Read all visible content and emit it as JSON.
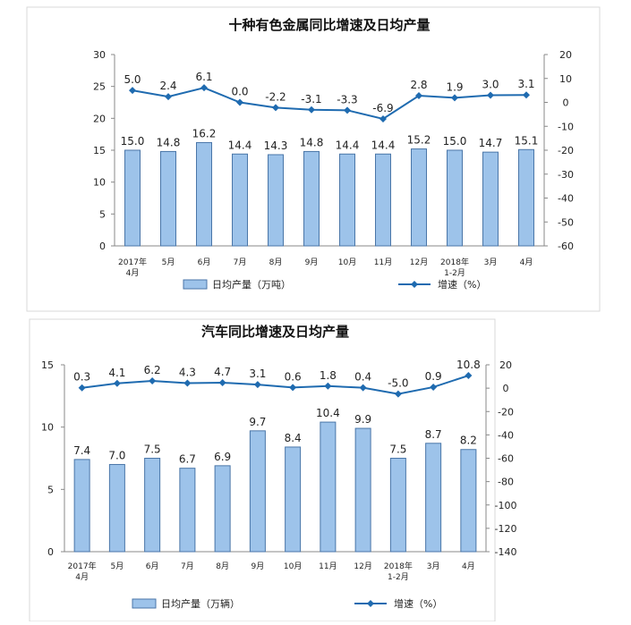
{
  "chart_data": [
    {
      "type": "bar",
      "title": "十种有色金属同比增速及日均产量",
      "categories": [
        "2017年\n4月",
        "5月",
        "6月",
        "7月",
        "8月",
        "9月",
        "10月",
        "11月",
        "12月",
        "2018年\n1-2月",
        "3月",
        "4月"
      ],
      "series": [
        {
          "name": "日均产量（万吨）",
          "type": "bar",
          "axis": "left",
          "values": [
            15.0,
            14.8,
            16.2,
            14.4,
            14.3,
            14.8,
            14.4,
            14.4,
            15.2,
            15.0,
            14.7,
            15.1
          ]
        },
        {
          "name": "增速（%）",
          "type": "line",
          "axis": "right",
          "values": [
            5.0,
            2.4,
            6.1,
            0.0,
            -2.2,
            -3.1,
            -3.3,
            -6.9,
            2.8,
            1.9,
            3.0,
            3.1
          ]
        }
      ],
      "y_left": {
        "min": 0,
        "max": 30,
        "ticks": [
          0,
          5,
          10,
          15,
          20,
          25,
          30
        ]
      },
      "y_right": {
        "min": -60,
        "max": 20,
        "ticks": [
          20,
          10,
          0,
          -10,
          -20,
          -30,
          -40,
          -50,
          -60
        ]
      },
      "legend_position": "bottom",
      "colors": {
        "bar_fill": "#9dc3ea",
        "bar_stroke": "#4a76a8",
        "line": "#1f6bb0"
      }
    },
    {
      "type": "bar",
      "title": "汽车同比增速及日均产量",
      "categories": [
        "2017年\n4月",
        "5月",
        "6月",
        "7月",
        "8月",
        "9月",
        "10月",
        "11月",
        "12月",
        "2018年\n1-2月",
        "3月",
        "4月"
      ],
      "series": [
        {
          "name": "日均产量（万辆）",
          "type": "bar",
          "axis": "left",
          "values": [
            7.4,
            7.0,
            7.5,
            6.7,
            6.9,
            9.7,
            8.4,
            10.4,
            9.9,
            7.5,
            8.7,
            8.2
          ]
        },
        {
          "name": "增速（%）",
          "type": "line",
          "axis": "right",
          "values": [
            0.3,
            4.1,
            6.2,
            4.3,
            4.7,
            3.1,
            0.6,
            1.8,
            0.4,
            -5.0,
            0.9,
            10.8
          ]
        }
      ],
      "y_left": {
        "min": 0,
        "max": 15,
        "ticks": [
          0,
          5,
          10,
          15
        ]
      },
      "y_right": {
        "min": -140,
        "max": 20,
        "ticks": [
          20,
          0,
          -20,
          -40,
          -60,
          -80,
          -100,
          -120,
          -140
        ]
      },
      "legend_position": "bottom",
      "colors": {
        "bar_fill": "#9dc3ea",
        "bar_stroke": "#4a76a8",
        "line": "#1f6bb0"
      }
    }
  ]
}
